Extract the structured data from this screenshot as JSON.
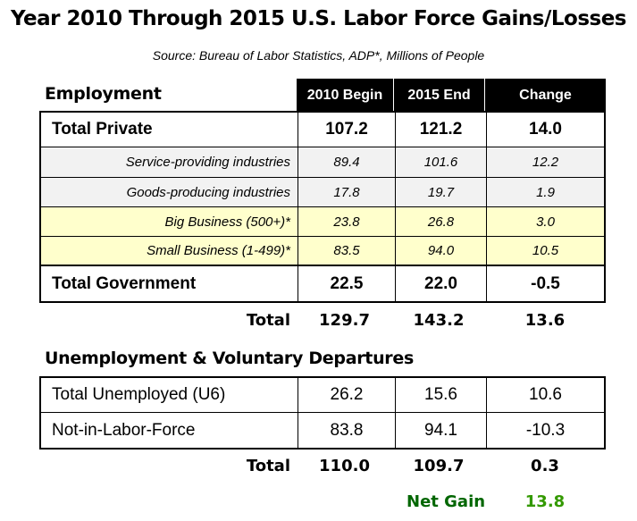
{
  "title": "Year 2010 Through 2015 U.S. Labor Force Gains/Losses",
  "source": "Source: Bureau of Labor Statistics, ADP*, Millions of People",
  "employment": {
    "heading": "Employment",
    "columns": [
      "2010 Begin",
      "2015 End",
      "Change"
    ],
    "rows": [
      {
        "label": "Total Private",
        "values": [
          "107.2",
          "121.2",
          "14.0"
        ]
      },
      {
        "label": "Service-providing industries",
        "values": [
          "89.4",
          "101.6",
          "12.2"
        ]
      },
      {
        "label": "Goods-producing industries",
        "values": [
          "17.8",
          "19.7",
          "1.9"
        ]
      },
      {
        "label": "Big Business (500+)*",
        "values": [
          "23.8",
          "26.8",
          "3.0"
        ]
      },
      {
        "label": "Small Business (1-499)*",
        "values": [
          "83.5",
          "94.0",
          "10.5"
        ]
      },
      {
        "label": "Total Government",
        "values": [
          "22.5",
          "22.0",
          "-0.5"
        ]
      }
    ],
    "total": {
      "label": "Total",
      "values": [
        "129.7",
        "143.2",
        "13.6"
      ]
    }
  },
  "unemployment": {
    "heading": "Unemployment & Voluntary Departures",
    "rows": [
      {
        "label": "Total Unemployed (U6)",
        "values": [
          "26.2",
          "15.6",
          "10.6"
        ]
      },
      {
        "label": "Not-in-Labor-Force",
        "values": [
          "83.8",
          "94.1",
          "-10.3"
        ]
      }
    ],
    "total": {
      "label": "Total",
      "values": [
        "110.0",
        "109.7",
        "0.3"
      ]
    }
  },
  "net_gain": {
    "label": "Net Gain",
    "value": "13.8",
    "label_color": "#006600",
    "value_color": "#339900"
  }
}
